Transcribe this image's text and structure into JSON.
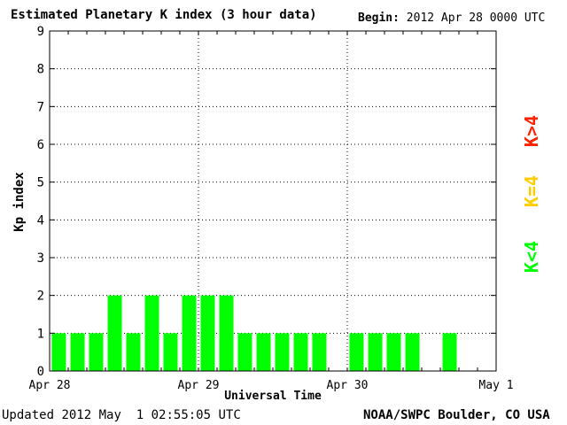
{
  "header": {
    "title": "Estimated Planetary K index (3 hour data)",
    "begin_label": "Begin:",
    "begin_value": "2012 Apr 28 0000 UTC"
  },
  "footer": {
    "updated_label": "Updated",
    "updated_value": "2012 May  1 02:55:05 UTC",
    "source": "NOAA/SWPC Boulder, CO USA"
  },
  "legend": [
    {
      "text": "K>4",
      "color": "#ff2200"
    },
    {
      "text": "K=4",
      "color": "#ffcc00"
    },
    {
      "text": "K<4",
      "color": "#00ff00"
    }
  ],
  "chart_data": {
    "type": "bar",
    "xlabel": "Universal Time",
    "ylabel": "Kp index",
    "ylim": [
      0,
      9
    ],
    "yticks": [
      0,
      1,
      2,
      3,
      4,
      5,
      6,
      7,
      8,
      9
    ],
    "x_tick_labels": [
      "Apr 28",
      "Apr 29",
      "Apr 30",
      "May 1"
    ],
    "grid": true,
    "interval_hours": 3,
    "bar_color": "#00ff00",
    "values": [
      1,
      1,
      1,
      2,
      1,
      2,
      1,
      2,
      2,
      2,
      1,
      1,
      1,
      1,
      1,
      null,
      1,
      1,
      1,
      1,
      null,
      1,
      null,
      null
    ]
  }
}
